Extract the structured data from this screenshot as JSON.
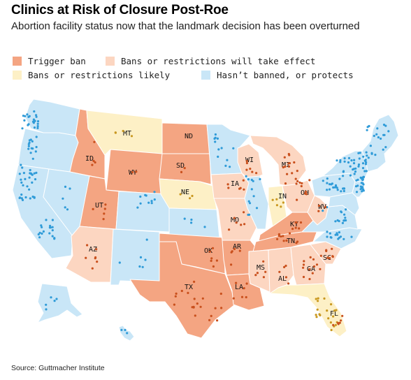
{
  "title": "Clinics at Risk of Closure Post-Roe",
  "subtitle": "Abortion facility status now that the landmark decision has been overturned",
  "legend": [
    {
      "label": "Trigger ban",
      "color": "#f4a582"
    },
    {
      "label": "Bans or restrictions will take effect",
      "color": "#fcd6c1"
    },
    {
      "label": "Bans or restrictions likely",
      "color": "#fdf0c6"
    },
    {
      "label": "Hasn’t banned, or protects",
      "color": "#c9e6f7"
    }
  ],
  "colors": {
    "trigger": "#f4a582",
    "will": "#fcd6c1",
    "likely": "#fdf0c6",
    "protect": "#c9e6f7",
    "dot_protect": "#2f9bd8",
    "dot_restrict": "#c9501d",
    "dot_likely": "#c99820"
  },
  "state_labels": [
    "MT",
    "ND",
    "ID",
    "WY",
    "SD",
    "NE",
    "UT",
    "AZ",
    "OK",
    "TX",
    "AR",
    "LA",
    "MS",
    "AL",
    "GA",
    "SC",
    "FL",
    "TN",
    "KY",
    "MO",
    "IA",
    "WI",
    "MI",
    "IN",
    "OH",
    "WV"
  ],
  "source": "Source: Guttmacher Institute"
}
